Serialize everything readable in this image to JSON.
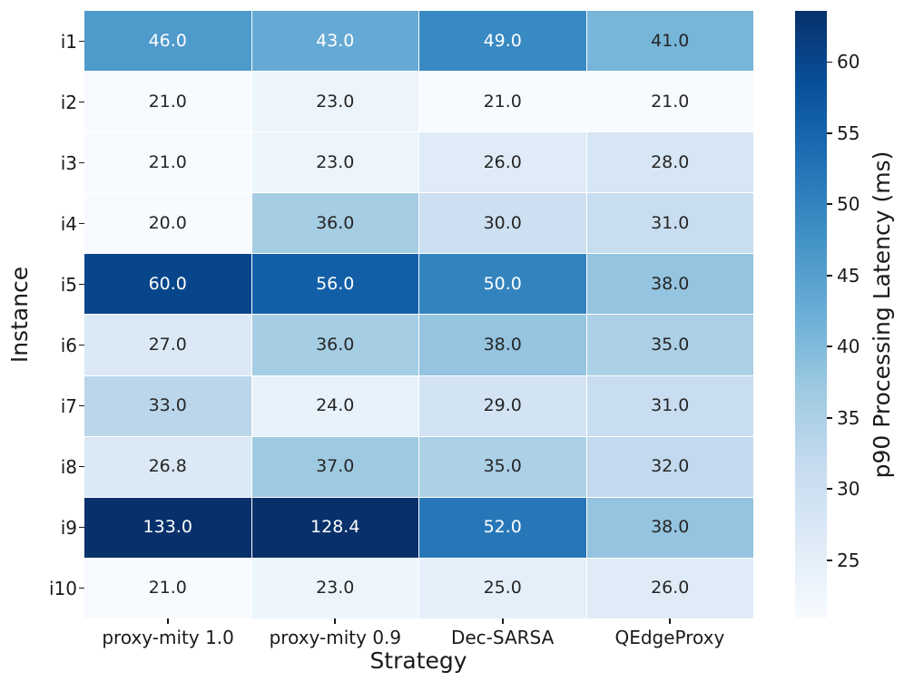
{
  "chart_data": {
    "type": "heatmap",
    "title": "",
    "xlabel": "Strategy",
    "ylabel": "Instance",
    "colorbar_label": "p90 Processing Latency (ms)",
    "x_categories": [
      "proxy-mity 1.0",
      "proxy-mity 0.9",
      "Dec-SARSA",
      "QEdgeProxy"
    ],
    "y_categories": [
      "i1",
      "i2",
      "i3",
      "i4",
      "i5",
      "i6",
      "i7",
      "i8",
      "i9",
      "i10"
    ],
    "values": [
      [
        46.0,
        43.0,
        49.0,
        41.0
      ],
      [
        21.0,
        23.0,
        21.0,
        21.0
      ],
      [
        21.0,
        23.0,
        26.0,
        28.0
      ],
      [
        20.0,
        36.0,
        30.0,
        31.0
      ],
      [
        60.0,
        56.0,
        50.0,
        38.0
      ],
      [
        27.0,
        36.0,
        38.0,
        35.0
      ],
      [
        33.0,
        24.0,
        29.0,
        31.0
      ],
      [
        26.8,
        37.0,
        35.0,
        32.0
      ],
      [
        133.0,
        128.4,
        52.0,
        38.0
      ],
      [
        21.0,
        23.0,
        25.0,
        26.0
      ]
    ],
    "value_format_decimals": 1,
    "colormap": "Blues",
    "colormap_anchors": [
      "#f7fbff",
      "#deebf7",
      "#c6dbef",
      "#9ecae1",
      "#6baed6",
      "#4292c6",
      "#2171b5",
      "#08519c",
      "#08306b"
    ],
    "vmin": 20.9,
    "vmax": 63.6,
    "colorbar_ticks": [
      25,
      30,
      35,
      40,
      45,
      50,
      55,
      60
    ],
    "colorbar_position": "right",
    "grid": false,
    "background": "#ffffff",
    "text_color": "#1a1a1a",
    "cell_gap_color": "#ffffff",
    "annotation_dark_color": "#262626",
    "annotation_light_color": "#ffffff",
    "luminance_threshold": 0.408
  }
}
